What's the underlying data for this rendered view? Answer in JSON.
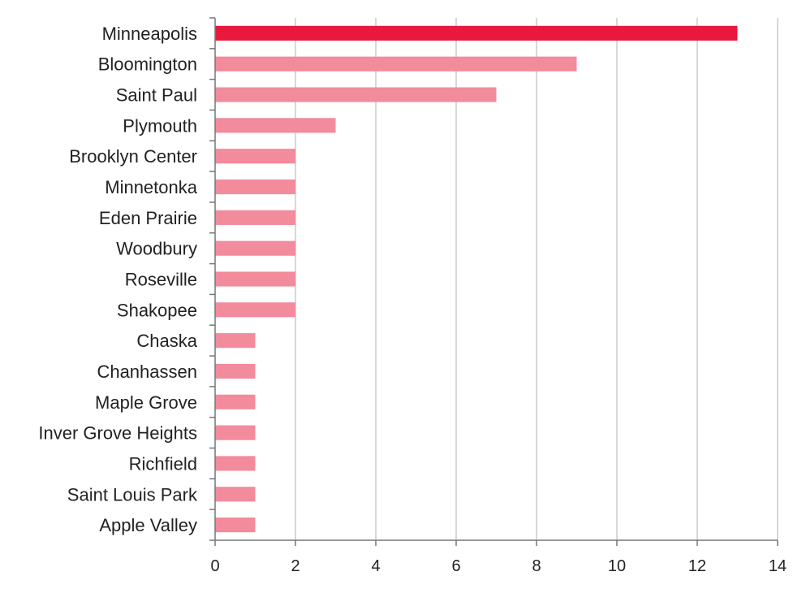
{
  "chart_data": {
    "type": "bar",
    "orientation": "horizontal",
    "title": "",
    "xlabel": "",
    "ylabel": "",
    "categories": [
      "Minneapolis",
      "Bloomington",
      "Saint Paul",
      "Plymouth",
      "Brooklyn Center",
      "Minnetonka",
      "Eden Prairie",
      "Woodbury",
      "Roseville",
      "Shakopee",
      "Chaska",
      "Chanhassen",
      "Maple Grove",
      "Inver Grove Heights",
      "Richfield",
      "Saint Louis Park",
      "Apple Valley"
    ],
    "values": [
      13,
      9,
      7,
      3,
      2,
      2,
      2,
      2,
      2,
      2,
      1,
      1,
      1,
      1,
      1,
      1,
      1
    ],
    "xlim": [
      0,
      14
    ],
    "xticks": [
      0,
      2,
      4,
      6,
      8,
      10,
      12,
      14
    ],
    "xtick_labels": [
      "0",
      "2",
      "4",
      "6",
      "8",
      "10",
      "12",
      "14"
    ],
    "grid": true,
    "highlight_index": 0,
    "colors": {
      "highlight": "#e8193c",
      "bar": "#f28b9c",
      "grid": "#cccccc",
      "axis": "#777777",
      "text": "#222222"
    }
  }
}
